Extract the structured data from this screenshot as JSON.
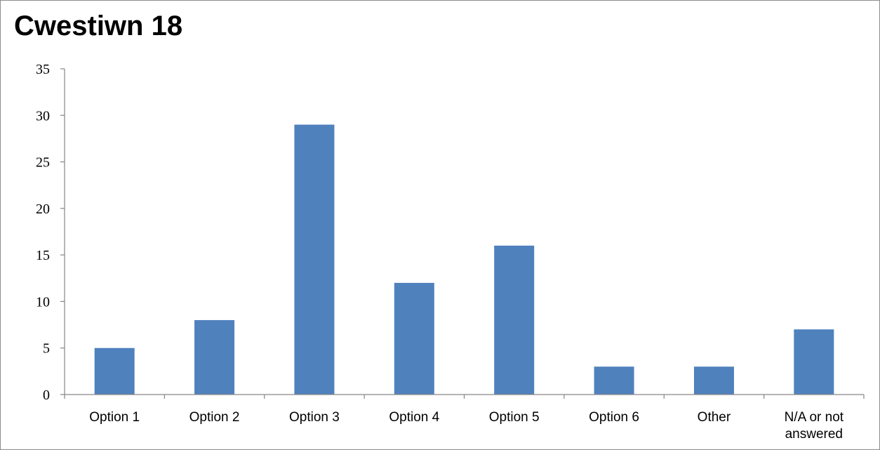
{
  "chart_data": {
    "type": "bar",
    "title": "Cwestiwn 18",
    "categories": [
      "Option 1",
      "Option 2",
      "Option 3",
      "Option 4",
      "Option 5",
      "Option 6",
      "Other",
      "N/A or not answered"
    ],
    "values": [
      5,
      8,
      29,
      12,
      16,
      3,
      3,
      7
    ],
    "ylim": [
      0,
      35
    ],
    "yticks": [
      "0",
      "5",
      "10",
      "15",
      "20",
      "25",
      "30",
      "35"
    ],
    "grid": false,
    "legend": "none",
    "colors": {
      "bar": "#4f81bd",
      "axis": "#868686"
    }
  }
}
